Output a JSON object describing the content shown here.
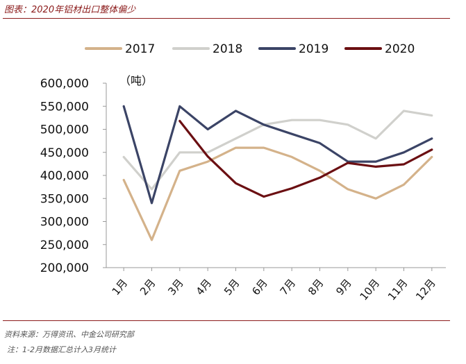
{
  "header": {
    "title": "图表：2020年铝材出口整体偏少"
  },
  "footer": {
    "source": "资料来源：万得资讯、中金公司研究部",
    "note": "注：1-2月数据汇总计入3月统计"
  },
  "chart_data": {
    "type": "line",
    "title": "2020年铝材出口整体偏少",
    "unit": "（吨）",
    "categories": [
      "1月",
      "2月",
      "3月",
      "4月",
      "5月",
      "6月",
      "7月",
      "8月",
      "9月",
      "10月",
      "11月",
      "12月"
    ],
    "y_ticks": [
      "600,000",
      "550,000",
      "500,000",
      "450,000",
      "400,000",
      "350,000",
      "300,000",
      "250,000",
      "200,000"
    ],
    "ylim": [
      200000,
      600000
    ],
    "legend_position": "top",
    "series": [
      {
        "name": "2017",
        "color": "#d4b28a",
        "values": [
          390000,
          260000,
          410000,
          430000,
          460000,
          460000,
          440000,
          410000,
          370000,
          350000,
          380000,
          440000
        ]
      },
      {
        "name": "2018",
        "color": "#d0d0cc",
        "values": [
          440000,
          370000,
          450000,
          450000,
          480000,
          510000,
          520000,
          520000,
          510000,
          480000,
          540000,
          530000
        ]
      },
      {
        "name": "2019",
        "color": "#3b4466",
        "values": [
          550000,
          340000,
          550000,
          500000,
          540000,
          510000,
          490000,
          470000,
          430000,
          430000,
          450000,
          480000
        ]
      },
      {
        "name": "2020",
        "color": "#6b0f12",
        "values": [
          null,
          null,
          518000,
          441000,
          383000,
          354000,
          372000,
          395000,
          427000,
          419000,
          424000,
          456000
        ]
      }
    ]
  }
}
